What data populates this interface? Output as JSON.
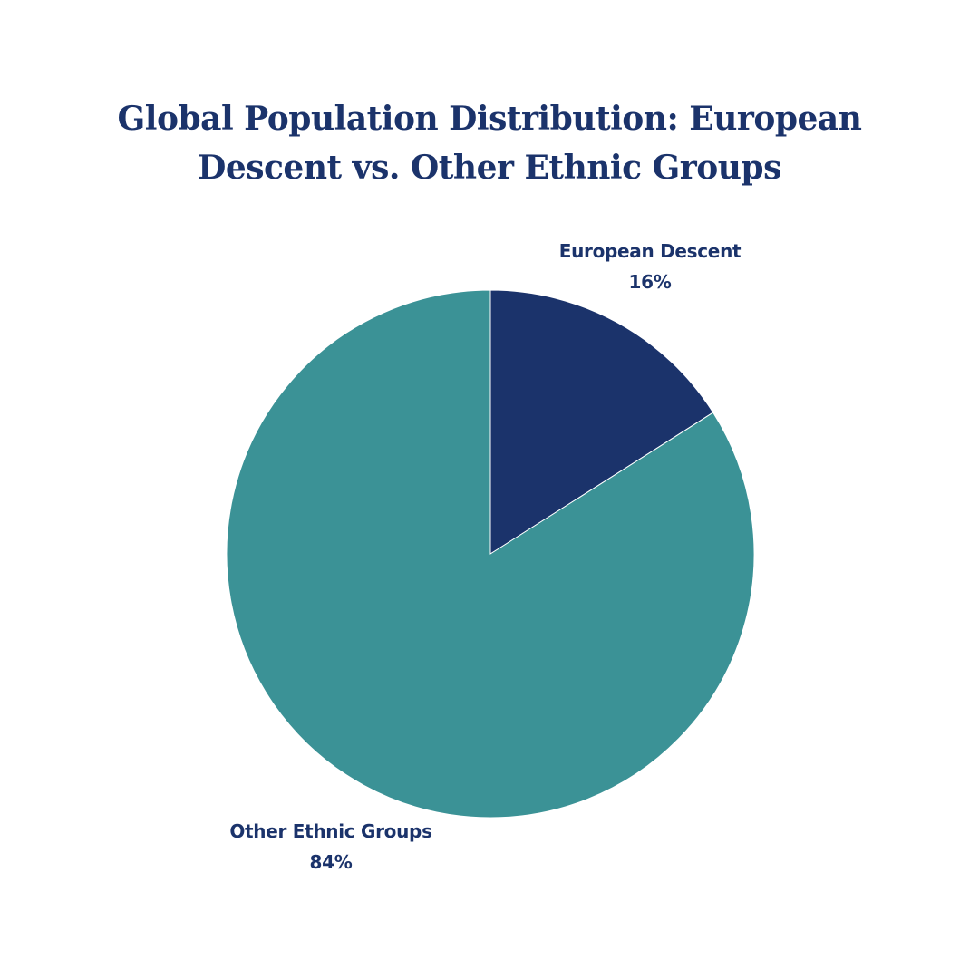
{
  "colors": {
    "title": "#1b336b",
    "label": "#1b336b",
    "slice_stroke": "#ffffff"
  },
  "chart_data": {
    "type": "pie",
    "title": "Global Population Distribution: European Descent vs. Other Ethnic Groups",
    "slices": [
      {
        "label": "European Descent",
        "value": 16,
        "value_label": "16%",
        "color": "#1b336b"
      },
      {
        "label": "Other Ethnic Groups",
        "value": 84,
        "value_label": "84%",
        "color": "#3b9296"
      }
    ],
    "start_angle_deg": 0,
    "direction": "clockwise"
  }
}
